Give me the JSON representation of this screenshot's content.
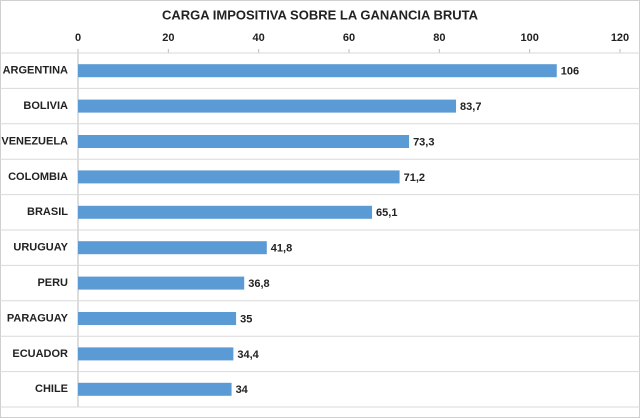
{
  "chart_data": {
    "type": "bar",
    "orientation": "horizontal",
    "title": "CARGA IMPOSITIVA SOBRE LA GANANCIA BRUTA",
    "categories": [
      "ARGENTINA",
      "BOLIVIA",
      "VENEZUELA",
      "COLOMBIA",
      "BRASIL",
      "URUGUAY",
      "PERU",
      "PARAGUAY",
      "ECUADOR",
      "CHILE"
    ],
    "values": [
      106,
      83.7,
      73.3,
      71.2,
      65.1,
      41.8,
      36.8,
      35,
      34.4,
      34
    ],
    "value_labels": [
      "106",
      "83,7",
      "73,3",
      "71,2",
      "65,1",
      "41,8",
      "36,8",
      "35",
      "34,4",
      "34"
    ],
    "color": "#5b9bd5",
    "xlim": [
      0,
      120
    ],
    "xticks": [
      0,
      20,
      40,
      60,
      80,
      100,
      120
    ]
  }
}
